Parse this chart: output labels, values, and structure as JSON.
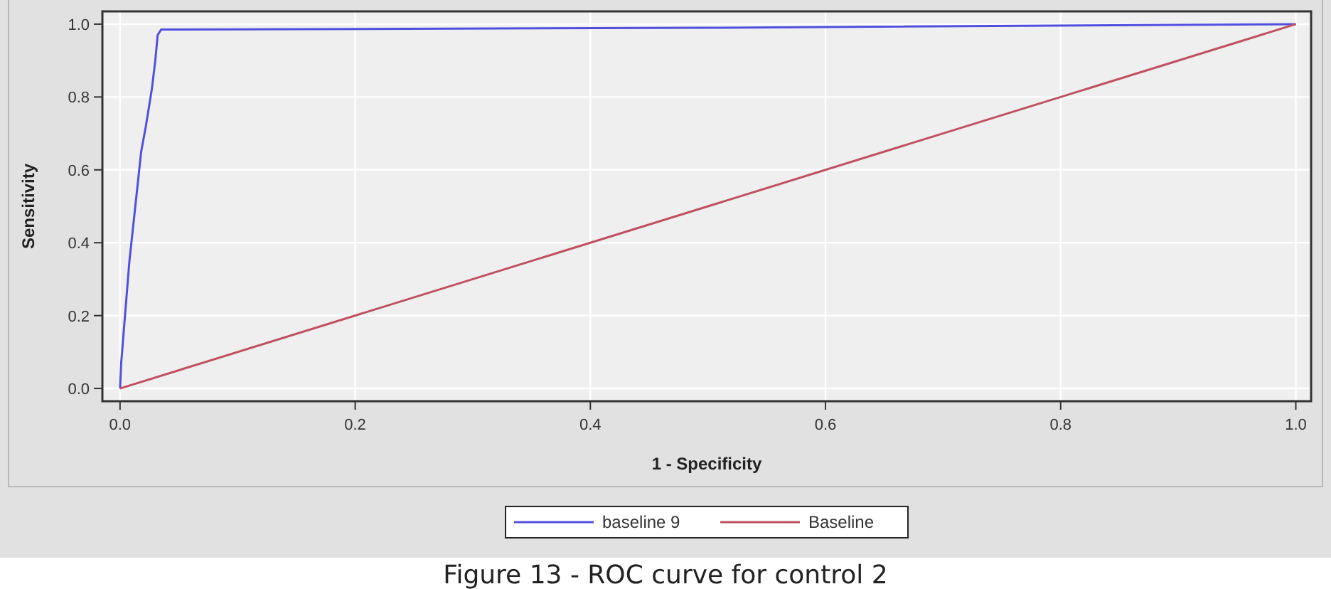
{
  "chart_data": {
    "type": "line",
    "title": "Figure 13 - ROC curve for control 2",
    "xlabel": "1 - Specificity",
    "ylabel": "Sensitivity",
    "xlim": [
      -0.015,
      1.013
    ],
    "ylim": [
      -0.035,
      1.035
    ],
    "xticks": [
      {
        "value": 0,
        "label": "0.0"
      },
      {
        "value": 0.2,
        "label": "0.2"
      },
      {
        "value": 0.4,
        "label": "0.4"
      },
      {
        "value": 0.6,
        "label": "0.6"
      },
      {
        "value": 0.8,
        "label": "0.8"
      },
      {
        "value": 1,
        "label": "1.0"
      }
    ],
    "yticks": [
      {
        "value": 0,
        "label": "0.0"
      },
      {
        "value": 0.2,
        "label": "0.2"
      },
      {
        "value": 0.4,
        "label": "0.4"
      },
      {
        "value": 0.6,
        "label": "0.6"
      },
      {
        "value": 0.8,
        "label": "0.8"
      },
      {
        "value": 1,
        "label": "1.0"
      }
    ],
    "grid": true,
    "legend": "bottom",
    "marker": "none",
    "line_style": "solid",
    "series": [
      {
        "name": "baseline 9",
        "color": "#5050e0",
        "x": [
          0,
          0.001,
          0.003,
          0.008,
          0.013,
          0.018,
          0.022,
          0.027,
          0.03,
          0.032,
          0.035,
          0.5,
          1
        ],
        "values": [
          0,
          0.07,
          0.15,
          0.35,
          0.5,
          0.65,
          0.72,
          0.82,
          0.9,
          0.97,
          0.985,
          0.99,
          1
        ]
      },
      {
        "name": "Baseline",
        "color": "#c05060",
        "x": [
          0,
          1
        ],
        "values": [
          0,
          1
        ]
      }
    ]
  }
}
